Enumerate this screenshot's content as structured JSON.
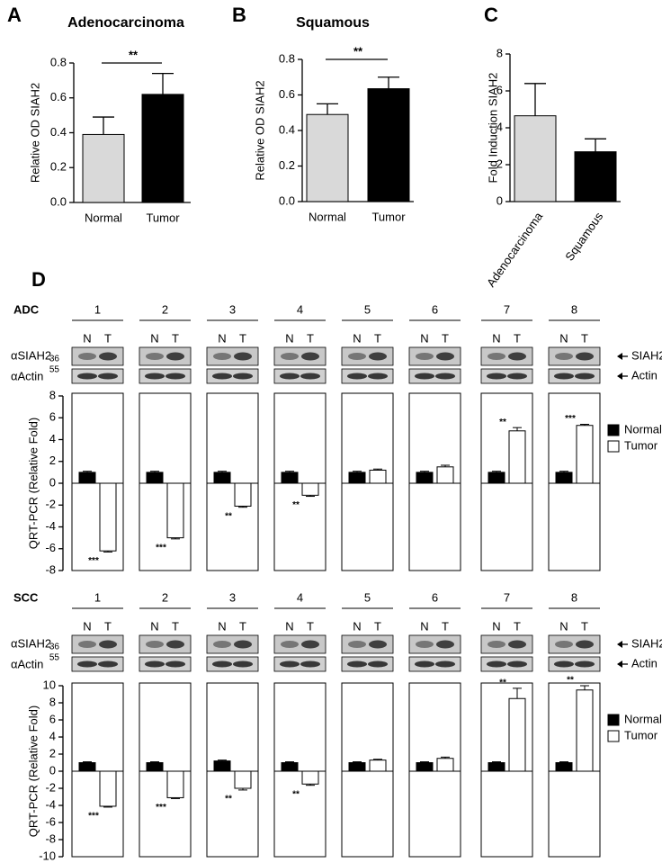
{
  "chart_data": [
    {
      "type": "bar",
      "panel": "A",
      "title": "Adenocarcinoma",
      "ylabel": "Relative OD SIAH2",
      "categories": [
        "Normal",
        "Tumor"
      ],
      "values": [
        0.39,
        0.62
      ],
      "errors": [
        0.1,
        0.12
      ],
      "colors": [
        "#d9d9d9",
        "#000000"
      ],
      "significance": "**",
      "ylim": [
        0,
        0.8
      ],
      "yticks": [
        {
          "value": 0,
          "label": "0.0"
        },
        0.2,
        0.4,
        0.6,
        0.8
      ]
    },
    {
      "type": "bar",
      "panel": "B",
      "title": "Squamous",
      "ylabel": "Relative OD SIAH2",
      "categories": [
        "Normal",
        "Tumor"
      ],
      "values": [
        0.49,
        0.635
      ],
      "errors": [
        0.06,
        0.065
      ],
      "colors": [
        "#d9d9d9",
        "#000000"
      ],
      "significance": "**",
      "ylim": [
        0,
        0.8
      ],
      "yticks": [
        {
          "value": 0,
          "label": "0.0"
        },
        0.2,
        0.4,
        0.6,
        0.8
      ]
    },
    {
      "type": "bar",
      "panel": "C",
      "ylabel": "Fold Induction SIAH2",
      "categories": [
        "Adenocarcinoma",
        "Squamous"
      ],
      "values": [
        4.65,
        2.7
      ],
      "errors": [
        1.75,
        0.7
      ],
      "colors": [
        "#d9d9d9",
        "#000000"
      ],
      "ylim": [
        0,
        8
      ],
      "yticks": [
        0,
        2,
        4,
        6,
        8
      ]
    },
    {
      "type": "paired-bar",
      "panel": "D",
      "row_label": "ADC",
      "ylabel": "QRT-PCR (Relative Fold)",
      "categories": [
        "1",
        "2",
        "3",
        "4",
        "5",
        "6",
        "7",
        "8"
      ],
      "lanes": [
        "N",
        "T"
      ],
      "blot_labels": [
        "αSIAH2",
        "αActin"
      ],
      "markers": [
        "36",
        "55"
      ],
      "bands": [
        "SIAH2",
        "Actin"
      ],
      "series": [
        {
          "name": "Normal",
          "color": "#000000",
          "values": [
            1,
            1,
            1,
            1,
            1,
            1,
            1,
            1
          ],
          "errors": [
            0.1,
            0.1,
            0.1,
            0.1,
            0.1,
            0.1,
            0.1,
            0.1
          ]
        },
        {
          "name": "Tumor",
          "color": "#ffffff",
          "values": [
            -6.2,
            -5.0,
            -2.1,
            -1.1,
            1.2,
            1.5,
            4.8,
            5.3
          ],
          "errors": [
            0.1,
            0.1,
            0.1,
            0.1,
            0.1,
            0.15,
            0.3,
            0.1
          ]
        }
      ],
      "stars": [
        "***",
        "***",
        "**",
        "**",
        null,
        null,
        "**",
        "***"
      ],
      "ylim": [
        -8,
        8
      ],
      "yticks": [
        -8,
        -6,
        -4,
        -2,
        0,
        2,
        4,
        6,
        8
      ]
    },
    {
      "type": "paired-bar",
      "row_label": "SCC",
      "ylabel": "QRT-PCR (Relative Fold)",
      "categories": [
        "1",
        "2",
        "3",
        "4",
        "5",
        "6",
        "7",
        "8"
      ],
      "lanes": [
        "N",
        "T"
      ],
      "blot_labels": [
        "αSIAH2",
        "αActin"
      ],
      "markers": [
        "36",
        "55"
      ],
      "bands": [
        "SIAH2",
        "Actin"
      ],
      "series": [
        {
          "name": "Normal",
          "color": "#000000",
          "values": [
            1,
            1,
            1.2,
            1,
            1,
            1,
            1,
            1
          ],
          "errors": [
            0.1,
            0.1,
            0.1,
            0.1,
            0.1,
            0.1,
            0.1,
            0.1
          ]
        },
        {
          "name": "Tumor",
          "color": "#ffffff",
          "values": [
            -4.1,
            -3.1,
            -2.0,
            -1.5,
            1.3,
            1.5,
            8.5,
            9.5
          ],
          "errors": [
            0.1,
            0.1,
            0.2,
            0.15,
            0.1,
            0.15,
            1.2,
            0.5
          ]
        }
      ],
      "stars": [
        "***",
        "***",
        "**",
        "**",
        null,
        null,
        "**",
        "**"
      ],
      "ylim": [
        -10,
        10
      ],
      "yticks": [
        -10,
        -8,
        -6,
        -4,
        -2,
        0,
        2,
        4,
        6,
        8,
        10
      ]
    }
  ]
}
